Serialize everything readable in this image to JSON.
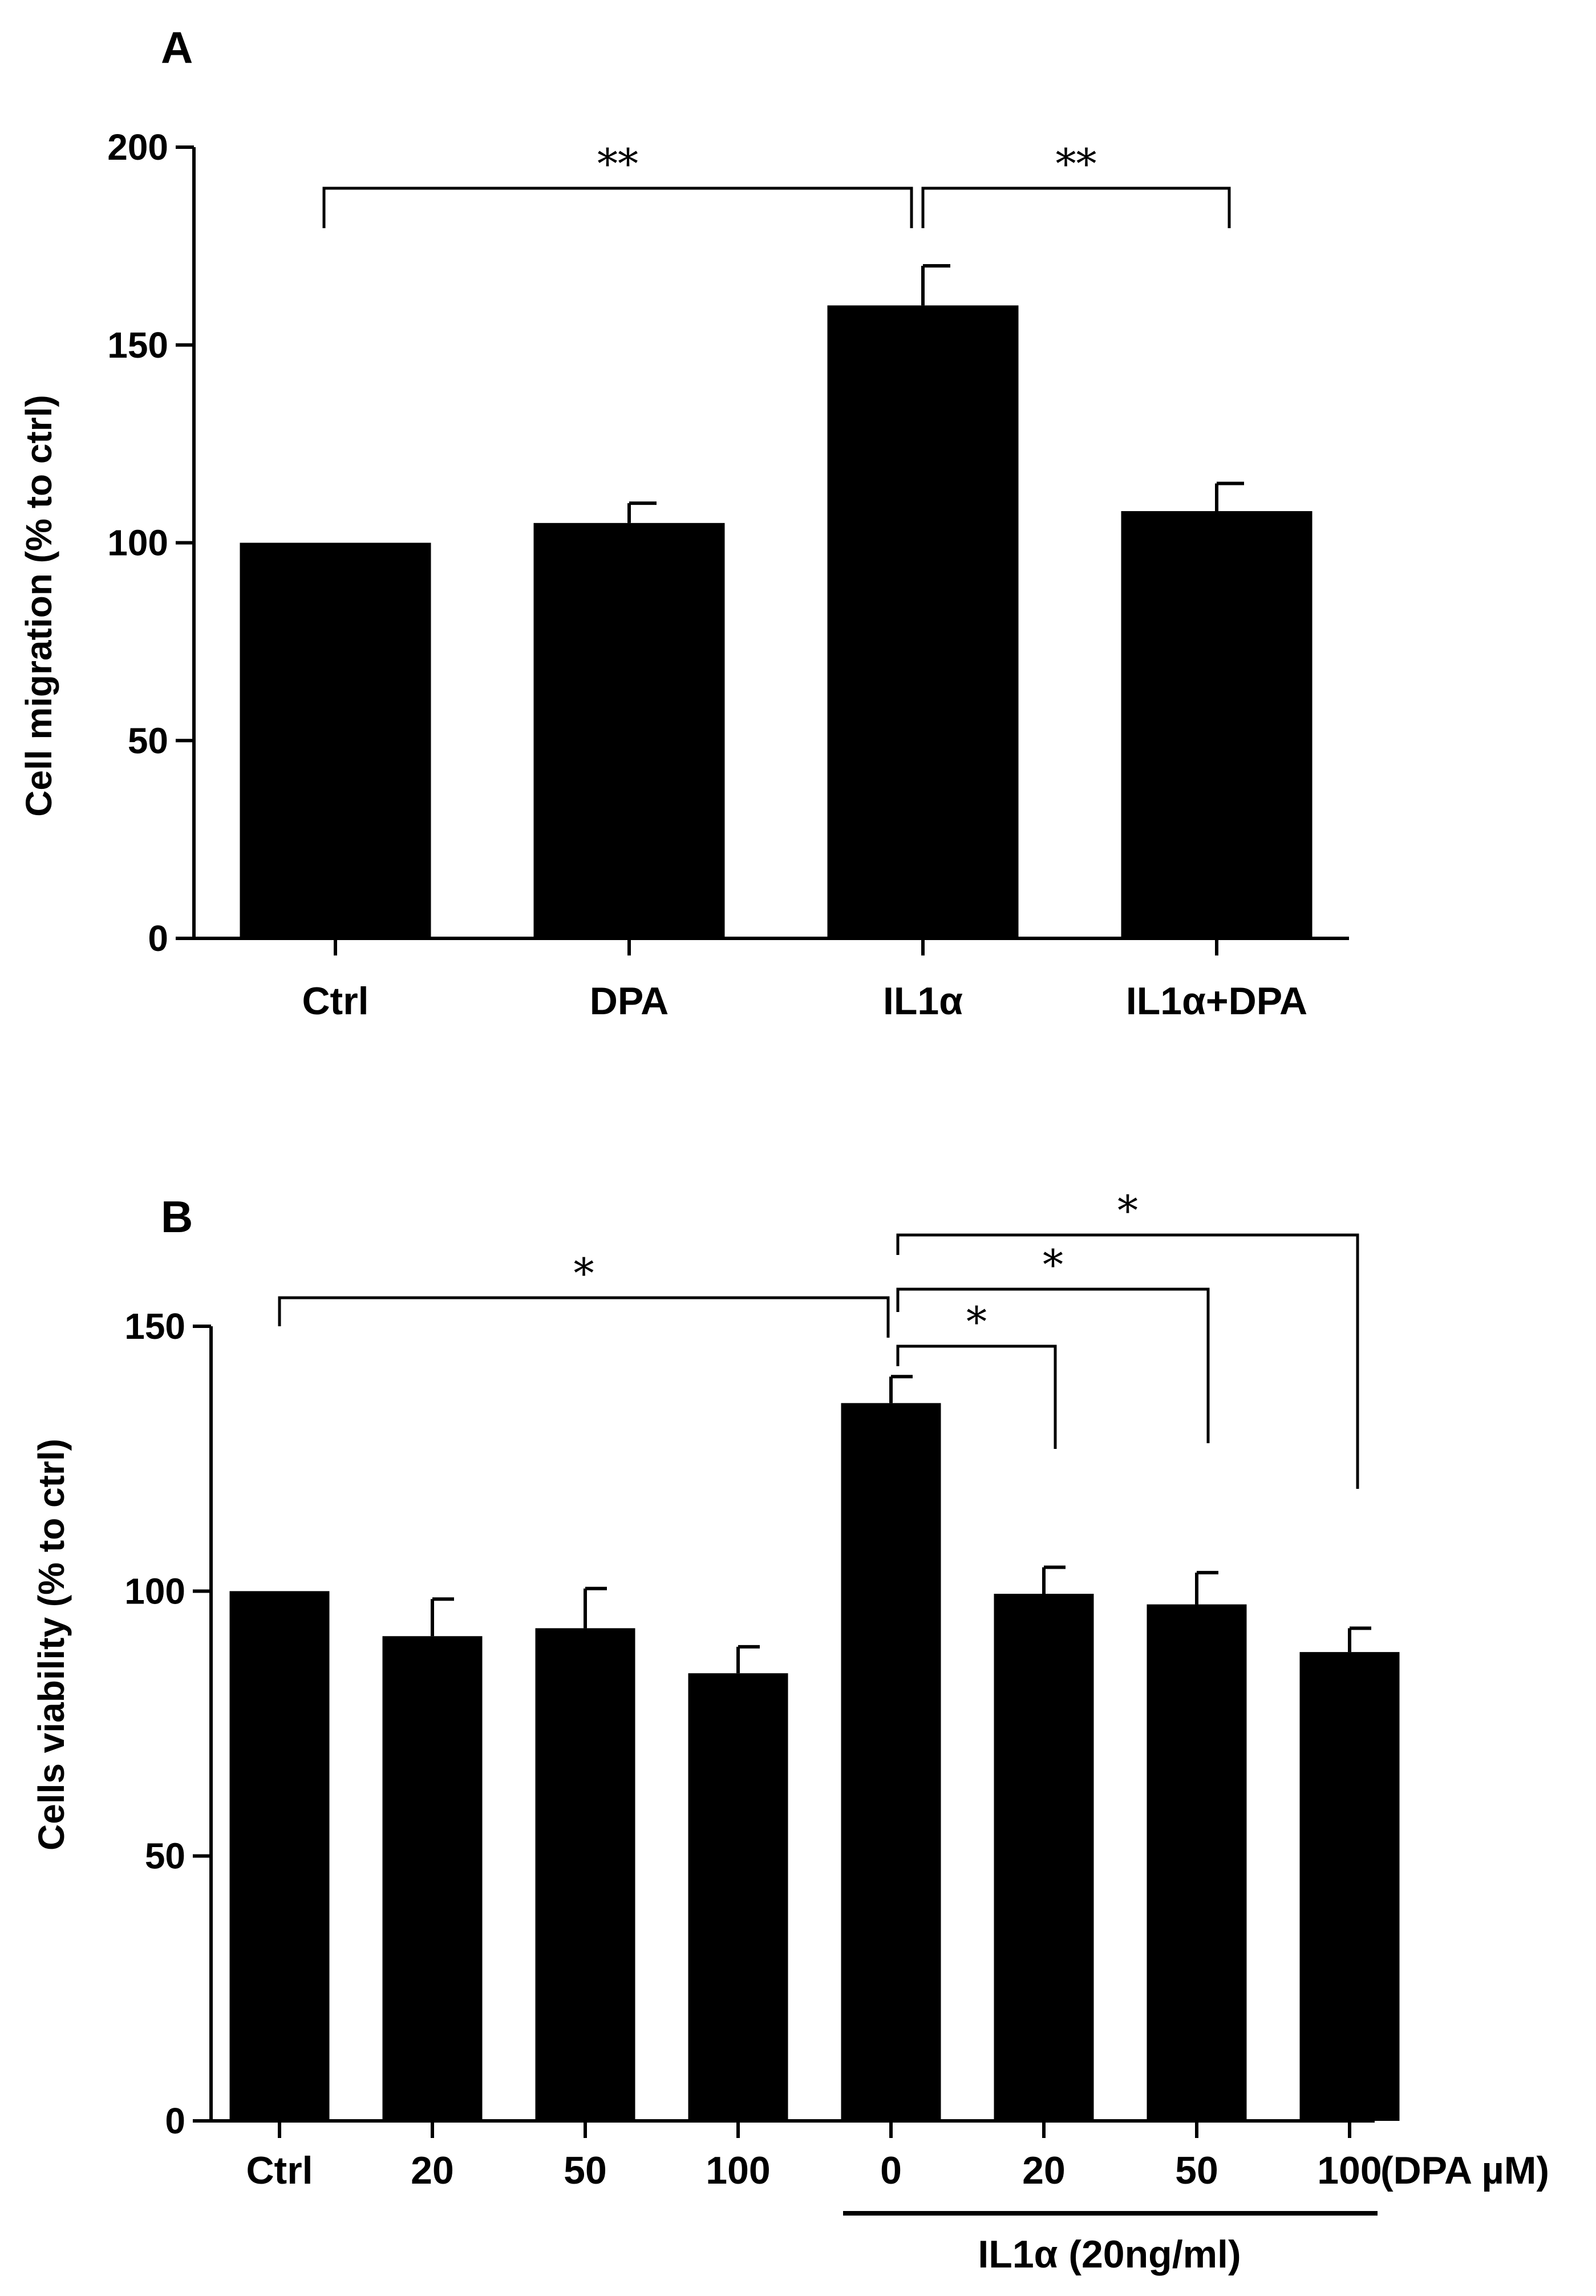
{
  "chart_data": [
    {
      "panel": "A",
      "type": "bar",
      "title": "",
      "xlabel": "",
      "ylabel": "Cell migration (% to ctrl)",
      "ylim": [
        0,
        200
      ],
      "yticks": [
        0,
        50,
        100,
        150,
        200
      ],
      "categories": [
        "Ctrl",
        "DPA",
        "IL1α",
        "IL1α+DPA"
      ],
      "values": [
        100,
        105,
        160,
        108
      ],
      "errors": [
        0,
        5,
        10,
        7
      ],
      "bar_color": "#000000",
      "significance": [
        {
          "from": 0,
          "to": 2,
          "label": "**"
        },
        {
          "from": 2,
          "to": 3,
          "label": "**"
        }
      ]
    },
    {
      "panel": "B",
      "type": "bar",
      "title": "",
      "xlabel": "(DPA µM)",
      "ylabel": "Cells viability (% to ctrl)",
      "ylim": [
        0,
        150
      ],
      "yticks": [
        0,
        50,
        100,
        150
      ],
      "categories": [
        "Ctrl",
        "20",
        "50",
        "100",
        "0",
        "20",
        "50",
        "100"
      ],
      "values": [
        100,
        91.5,
        93,
        84.5,
        135.5,
        99.5,
        97.5,
        88.5
      ],
      "errors": [
        0,
        7,
        7.5,
        5,
        5,
        5,
        6,
        4.5
      ],
      "bar_color": "#000000",
      "group_label": "IL1α (20ng/ml)",
      "group_span": [
        4,
        7
      ],
      "significance": [
        {
          "from": 0,
          "to": 4,
          "label": "*"
        },
        {
          "from": 4,
          "to": 5,
          "label": "*"
        },
        {
          "from": 4,
          "to": 6,
          "label": "*"
        },
        {
          "from": 4,
          "to": 7,
          "label": "*"
        }
      ]
    }
  ]
}
